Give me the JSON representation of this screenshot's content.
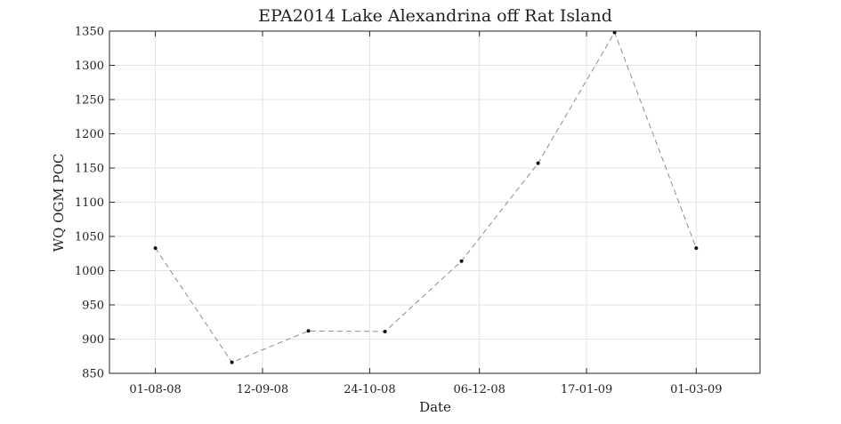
{
  "chart_data": {
    "type": "line",
    "title": "EPA2014 Lake Alexandrina off Rat Island",
    "xlabel": "Date",
    "ylabel": "WQ OGM POC",
    "x_ticks": [
      "01-08-08",
      "12-09-08",
      "24-10-08",
      "06-12-08",
      "17-01-09",
      "01-03-09"
    ],
    "x_tick_dates": [
      "2008-08-01",
      "2008-09-12",
      "2008-10-24",
      "2008-12-06",
      "2009-01-17",
      "2009-03-01"
    ],
    "xlim": [
      "2008-07-14",
      "2009-03-26"
    ],
    "y_ticks": [
      850,
      900,
      950,
      1000,
      1050,
      1100,
      1150,
      1200,
      1250,
      1300,
      1350
    ],
    "ylim": [
      850,
      1350
    ],
    "grid": true,
    "series": [
      {
        "x": [
          "2008-08-01",
          "2008-08-31",
          "2008-09-30",
          "2008-10-30",
          "2008-11-29",
          "2008-12-29",
          "2009-01-28",
          "2009-03-01"
        ],
        "y": [
          1033,
          866,
          912,
          911,
          1014,
          1157,
          1348,
          1033
        ],
        "line_style": "dashed",
        "line_color": "#8c8c8c",
        "marker_color": "#111111"
      }
    ]
  }
}
